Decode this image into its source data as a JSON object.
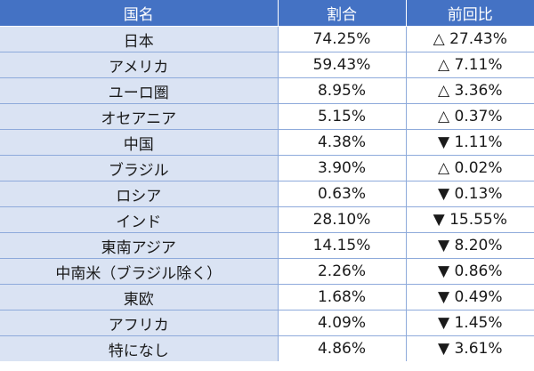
{
  "table": {
    "headers": {
      "country": "国名",
      "share": "割合",
      "change": "前回比"
    },
    "rows": [
      {
        "country": "日本",
        "share": "74.25%",
        "change": "△ 27.43%"
      },
      {
        "country": "アメリカ",
        "share": "59.43%",
        "change": "△ 7.11%"
      },
      {
        "country": "ユーロ圏",
        "share": "8.95%",
        "change": "△ 3.36%"
      },
      {
        "country": "オセアニア",
        "share": "5.15%",
        "change": "△ 0.37%"
      },
      {
        "country": "中国",
        "share": "4.38%",
        "change": "▼ 1.11%"
      },
      {
        "country": "ブラジル",
        "share": "3.90%",
        "change": "△ 0.02%"
      },
      {
        "country": "ロシア",
        "share": "0.63%",
        "change": "▼ 0.13%"
      },
      {
        "country": "インド",
        "share": "28.10%",
        "change": "▼ 15.55%"
      },
      {
        "country": "東南アジア",
        "share": "14.15%",
        "change": "▼ 8.20%"
      },
      {
        "country": "中南米（ブラジル除く）",
        "share": "2.26%",
        "change": "▼ 0.86%"
      },
      {
        "country": "東欧",
        "share": "1.68%",
        "change": "▼ 0.49%"
      },
      {
        "country": "アフリカ",
        "share": "4.09%",
        "change": "▼ 1.45%"
      },
      {
        "country": "特になし",
        "share": "4.86%",
        "change": "▼ 3.61%"
      }
    ]
  },
  "colors": {
    "header_bg": "#4472c4",
    "header_text": "#ffffff",
    "first_column_bg": "#dae3f3",
    "grid_line": "#8eaadb"
  }
}
